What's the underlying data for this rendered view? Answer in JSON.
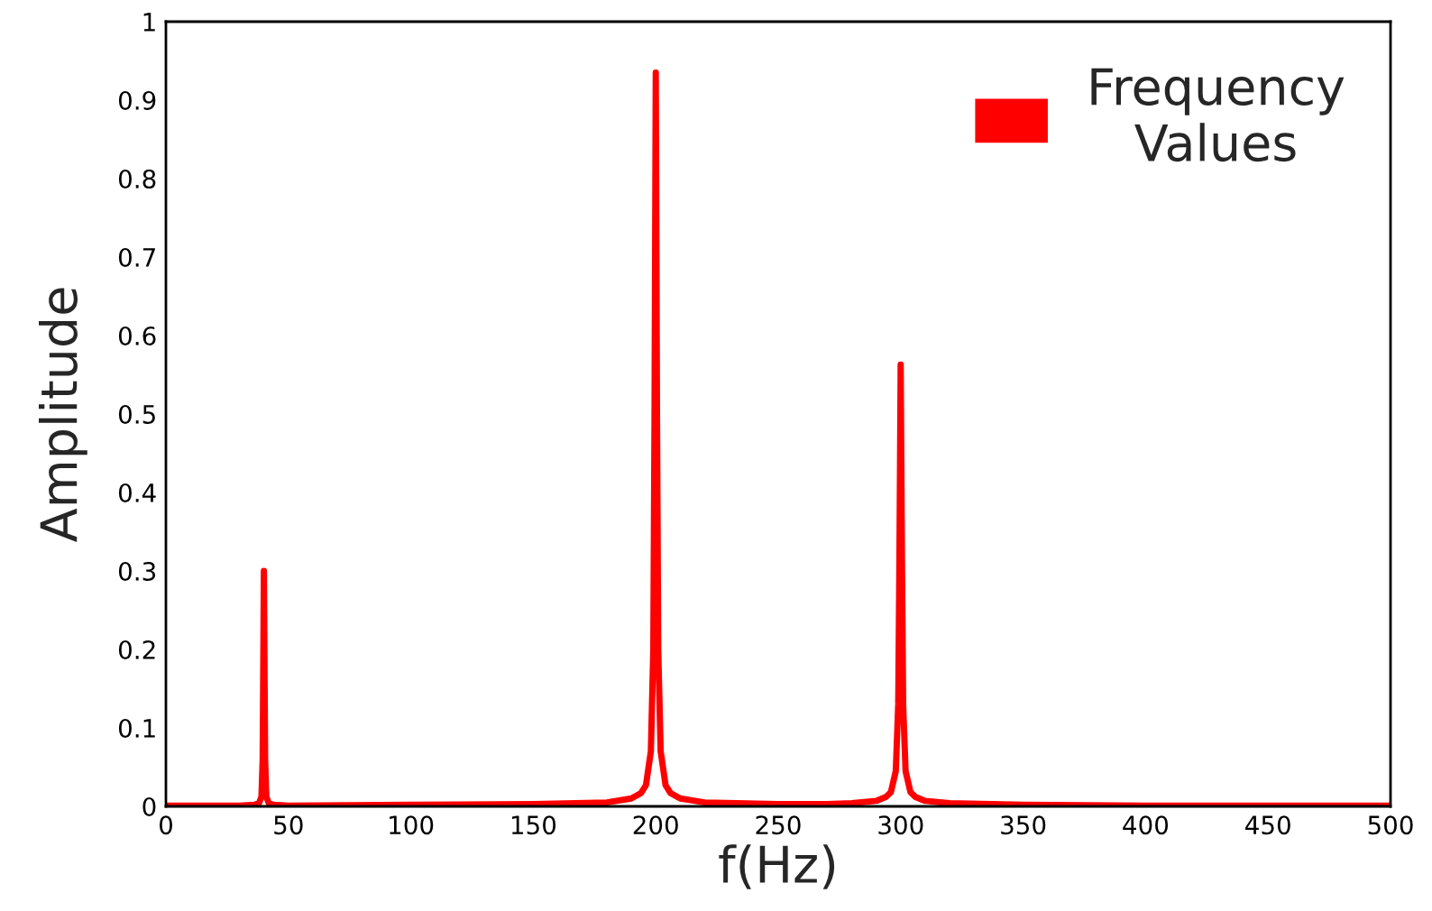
{
  "chart_data": {
    "type": "line",
    "xlabel": "f(Hz)",
    "ylabel": "Amplitude",
    "series": [
      {
        "name": "Frequency\nValues",
        "color": "#ff0000",
        "x": [
          0,
          20,
          30,
          36,
          38,
          39,
          39.5,
          40,
          40.5,
          41,
          42,
          44,
          50,
          100,
          150,
          180,
          190,
          194,
          196,
          198,
          199,
          199.5,
          200,
          200.5,
          201,
          202,
          204,
          206,
          210,
          220,
          250,
          270,
          280,
          290,
          294,
          296,
          298,
          299,
          299.5,
          300,
          300.5,
          301,
          302,
          304,
          306,
          310,
          320,
          350,
          400,
          450,
          500
        ],
        "values": [
          0.001,
          0.001,
          0.001,
          0.002,
          0.004,
          0.012,
          0.06,
          0.3,
          0.06,
          0.012,
          0.004,
          0.002,
          0.001,
          0.002,
          0.003,
          0.005,
          0.01,
          0.017,
          0.027,
          0.07,
          0.2,
          0.5,
          0.935,
          0.5,
          0.2,
          0.07,
          0.027,
          0.017,
          0.01,
          0.005,
          0.003,
          0.003,
          0.004,
          0.007,
          0.012,
          0.018,
          0.045,
          0.13,
          0.32,
          0.563,
          0.32,
          0.13,
          0.045,
          0.018,
          0.012,
          0.007,
          0.004,
          0.002,
          0.001,
          0.001,
          0.001
        ]
      }
    ],
    "xlim": [
      0,
      500
    ],
    "xticks": [
      0,
      50,
      100,
      150,
      200,
      250,
      300,
      350,
      400,
      450,
      500
    ],
    "ylim": [
      0,
      1
    ],
    "yticks": [
      0,
      0.1,
      0.2,
      0.3,
      0.4,
      0.5,
      0.6,
      0.7,
      0.8,
      0.9,
      1
    ],
    "legend": "top right"
  }
}
